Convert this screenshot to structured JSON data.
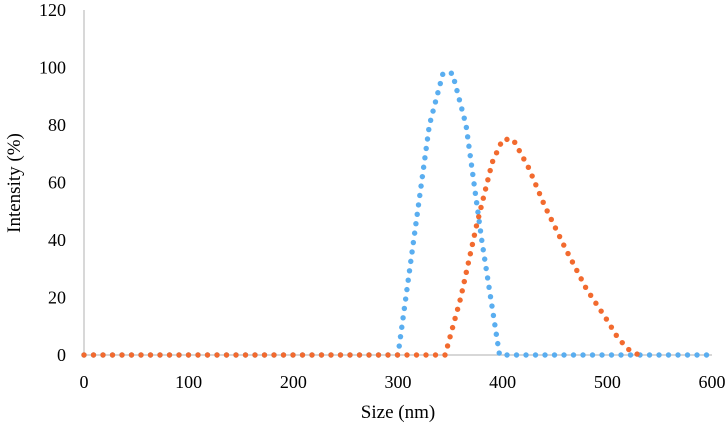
{
  "chart_data": {
    "type": "scatter",
    "title": "",
    "xlabel": "Size (nm)",
    "ylabel": "Intensity (%)",
    "xlim": [
      0,
      600
    ],
    "ylim": [
      0,
      120
    ],
    "x_ticks": [
      "0",
      "100",
      "200",
      "300",
      "400",
      "500",
      "600"
    ],
    "y_ticks": [
      "0",
      "20",
      "40",
      "60",
      "80",
      "100",
      "120"
    ],
    "grid": false,
    "legend": "none",
    "series": [
      {
        "color": "#5aaef0",
        "marker": "dotted-line",
        "points": [
          [
            0,
            0
          ],
          [
            300,
            0
          ],
          [
            315,
            40
          ],
          [
            330,
            80
          ],
          [
            343,
            98
          ],
          [
            352,
            98
          ],
          [
            365,
            80
          ],
          [
            380,
            40
          ],
          [
            397,
            0
          ],
          [
            460,
            0
          ],
          [
            600,
            0
          ]
        ]
      },
      {
        "color": "#f26a2e",
        "marker": "dotted-line",
        "points": [
          [
            0,
            0
          ],
          [
            345,
            0
          ],
          [
            360,
            20
          ],
          [
            375,
            45
          ],
          [
            390,
            67
          ],
          [
            400,
            75
          ],
          [
            410,
            75
          ],
          [
            425,
            65
          ],
          [
            440,
            52
          ],
          [
            460,
            37
          ],
          [
            480,
            23
          ],
          [
            500,
            12
          ],
          [
            510,
            6
          ],
          [
            520,
            2
          ],
          [
            530,
            0
          ]
        ]
      }
    ]
  }
}
